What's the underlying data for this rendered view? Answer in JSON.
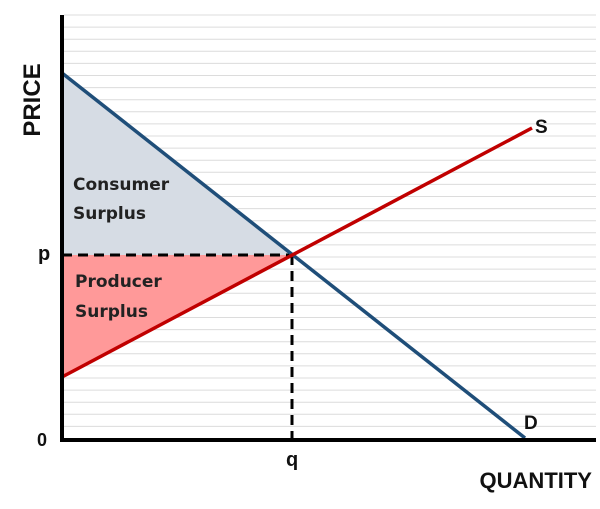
{
  "axes": {
    "y_label": "PRICE",
    "x_label": "QUANTITY",
    "origin_label": "0"
  },
  "equilibrium": {
    "price_label": "p",
    "quantity_label": "q"
  },
  "curves": {
    "supply": {
      "label": "S",
      "color": "#c00000"
    },
    "demand": {
      "label": "D",
      "color": "#1f4e79"
    }
  },
  "areas": {
    "consumer_surplus": {
      "line1": "Consumer",
      "line2": "Surplus",
      "color": "#d6dce4"
    },
    "producer_surplus": {
      "line1": "Producer",
      "line2": "Surplus",
      "color": "#ff9999"
    }
  },
  "grid": {
    "on": true,
    "orientation": "horizontal",
    "color": "#dcdcdc"
  }
}
